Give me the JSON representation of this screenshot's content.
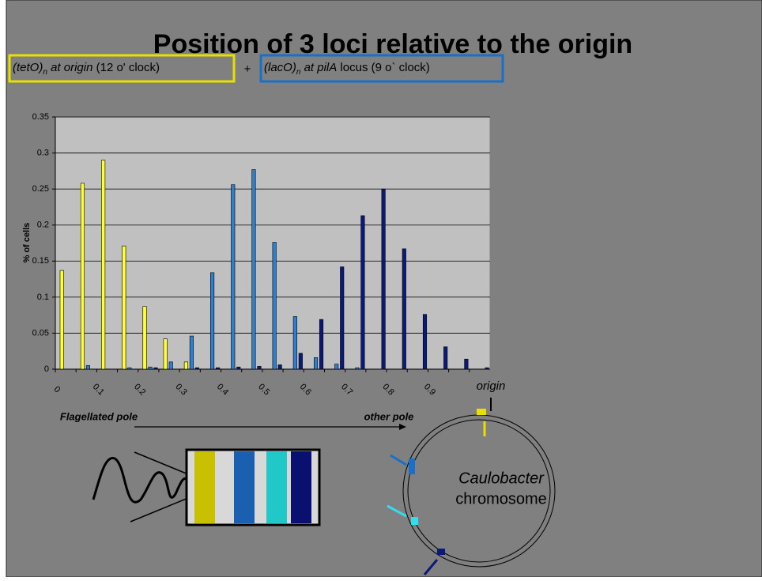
{
  "chart_data": {
    "type": "bar",
    "title": "Position of 3 loci relative to the origin",
    "label_boxes": [
      {
        "italic": "(tetO)",
        "sub": "n",
        "italic_after": " at origin",
        "plain": " (12 o' clock)",
        "color": "#e8e000"
      },
      {
        "italic": "(lacO)",
        "sub": "n",
        "italic_after": " at pilA",
        "plain": " locus (9 o` clock)",
        "color": "#1a6fc8"
      }
    ],
    "plus": "+",
    "y_label": "% of cells",
    "categories": [
      "0",
      null,
      "0.1",
      null,
      "0.2",
      null,
      "0.3",
      null,
      "0.4",
      null,
      "0.5",
      null,
      "0.6",
      null,
      "0.7",
      null,
      "0.8",
      null,
      "0.9",
      null,
      null
    ],
    "series": [
      {
        "color": "#ffff33",
        "values": [
          0.137,
          0.258,
          0.29,
          0.171,
          0.087,
          0.042,
          0.01,
          0,
          0,
          0,
          0,
          0,
          0,
          0,
          0,
          0,
          0,
          0,
          0,
          0,
          0
        ]
      },
      {
        "color": "#2f7fd0",
        "values": [
          0,
          0.005,
          0,
          0.002,
          0.003,
          0.01,
          0.046,
          0.134,
          0.256,
          0.277,
          0.176,
          0.073,
          0.016,
          0.007,
          0.002,
          0,
          0,
          0,
          0,
          0,
          0
        ]
      },
      {
        "color": "#0a1a78",
        "values": [
          0,
          0,
          0,
          0,
          0.002,
          0,
          0.002,
          0.002,
          0.003,
          0.004,
          0.006,
          0.022,
          0.069,
          0.142,
          0.213,
          0.25,
          0.167,
          0.076,
          0.031,
          0.014,
          0.002
        ]
      }
    ],
    "ylim": [
      0,
      0.35
    ],
    "yticks": [
      0,
      0.05,
      0.1,
      0.15,
      0.2,
      0.25,
      0.3,
      0.35
    ],
    "grid": true,
    "axis_start": "Flagellated pole",
    "axis_end": "other pole",
    "origin_label": "origin",
    "chromosome_label": [
      "Caulobacter",
      "chromosome"
    ]
  }
}
